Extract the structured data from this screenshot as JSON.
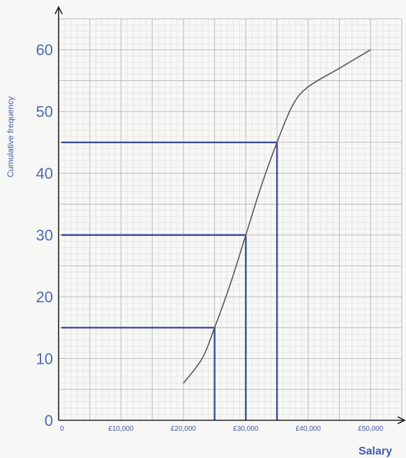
{
  "chart_data": {
    "type": "line",
    "title": "",
    "xlabel": "Salary",
    "ylabel": "Cumulative frequency",
    "xlim": [
      0,
      55000
    ],
    "ylim": [
      0,
      65
    ],
    "grid": true,
    "x_ticks": [
      {
        "value": 0,
        "label": "0"
      },
      {
        "value": 10000,
        "label": "£10,000"
      },
      {
        "value": 20000,
        "label": "£20,000"
      },
      {
        "value": 30000,
        "label": "£30,000"
      },
      {
        "value": 40000,
        "label": "£40,000"
      },
      {
        "value": 50000,
        "label": "£50,000"
      }
    ],
    "y_ticks": [
      {
        "value": 0,
        "label": "0"
      },
      {
        "value": 10,
        "label": "10"
      },
      {
        "value": 20,
        "label": "20"
      },
      {
        "value": 30,
        "label": "30"
      },
      {
        "value": 40,
        "label": "40"
      },
      {
        "value": 50,
        "label": "50"
      },
      {
        "value": 60,
        "label": "60"
      }
    ],
    "series": [
      {
        "x": [
          20000,
          23000,
          25000,
          27500,
          30000,
          32500,
          35000,
          37500,
          40000,
          45000,
          50000
        ],
        "y": [
          6,
          10,
          15,
          22,
          30,
          38,
          45,
          51,
          54,
          57,
          60
        ]
      }
    ],
    "reading_lines": [
      {
        "x": 25000,
        "y": 15
      },
      {
        "x": 30000,
        "y": 30
      },
      {
        "x": 35000,
        "y": 45
      }
    ],
    "colors": {
      "curve": "#555555",
      "reading_lines": "#3a4a9c",
      "labels": "#4a6cb3",
      "grid_minor": "#dcdcdc",
      "grid_major": "#b9b9b9"
    }
  }
}
